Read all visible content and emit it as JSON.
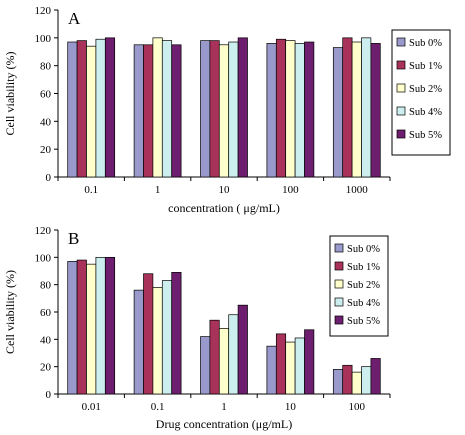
{
  "chart_data": [
    {
      "type": "bar",
      "panel_label": "A",
      "xlabel": "concentration ( μg/mL)",
      "ylabel": "Cell viability (%)",
      "ylim": [
        0,
        120
      ],
      "yticks": [
        0,
        20,
        40,
        60,
        80,
        100,
        120
      ],
      "categories": [
        "0.1",
        "1",
        "10",
        "100",
        "1000"
      ],
      "legend_position": "top-right",
      "series": [
        {
          "name": "Sub 0%",
          "color": "#9999cc",
          "values": [
            97,
            95,
            98,
            96,
            93
          ]
        },
        {
          "name": "Sub 1%",
          "color": "#a8325a",
          "values": [
            98,
            95,
            98,
            99,
            100
          ]
        },
        {
          "name": "Sub 2%",
          "color": "#ffffcc",
          "values": [
            94,
            100,
            95,
            98,
            97
          ]
        },
        {
          "name": "Sub 4%",
          "color": "#cceeee",
          "values": [
            99,
            98,
            97,
            96,
            100
          ]
        },
        {
          "name": "Sub 5%",
          "color": "#6e1e6e",
          "values": [
            100,
            95,
            100,
            97,
            96
          ]
        }
      ]
    },
    {
      "type": "bar",
      "panel_label": "B",
      "xlabel": "Drug concentration (μg/mL)",
      "ylabel": "Cell viability (%)",
      "ylim": [
        0,
        120
      ],
      "yticks": [
        0,
        20,
        40,
        60,
        80,
        100,
        120
      ],
      "categories": [
        "0.01",
        "0.1",
        "1",
        "10",
        "100"
      ],
      "legend_position": "top-right",
      "series": [
        {
          "name": "Sub 0%",
          "color": "#9999cc",
          "values": [
            97,
            76,
            42,
            35,
            18
          ]
        },
        {
          "name": "Sub 1%",
          "color": "#a8325a",
          "values": [
            98,
            88,
            54,
            44,
            21
          ]
        },
        {
          "name": "Sub 2%",
          "color": "#ffffcc",
          "values": [
            95,
            78,
            48,
            38,
            16
          ]
        },
        {
          "name": "Sub 4%",
          "color": "#cceeee",
          "values": [
            100,
            83,
            58,
            41,
            20
          ]
        },
        {
          "name": "Sub 5%",
          "color": "#6e1e6e",
          "values": [
            100,
            89,
            65,
            47,
            26
          ]
        }
      ]
    }
  ]
}
